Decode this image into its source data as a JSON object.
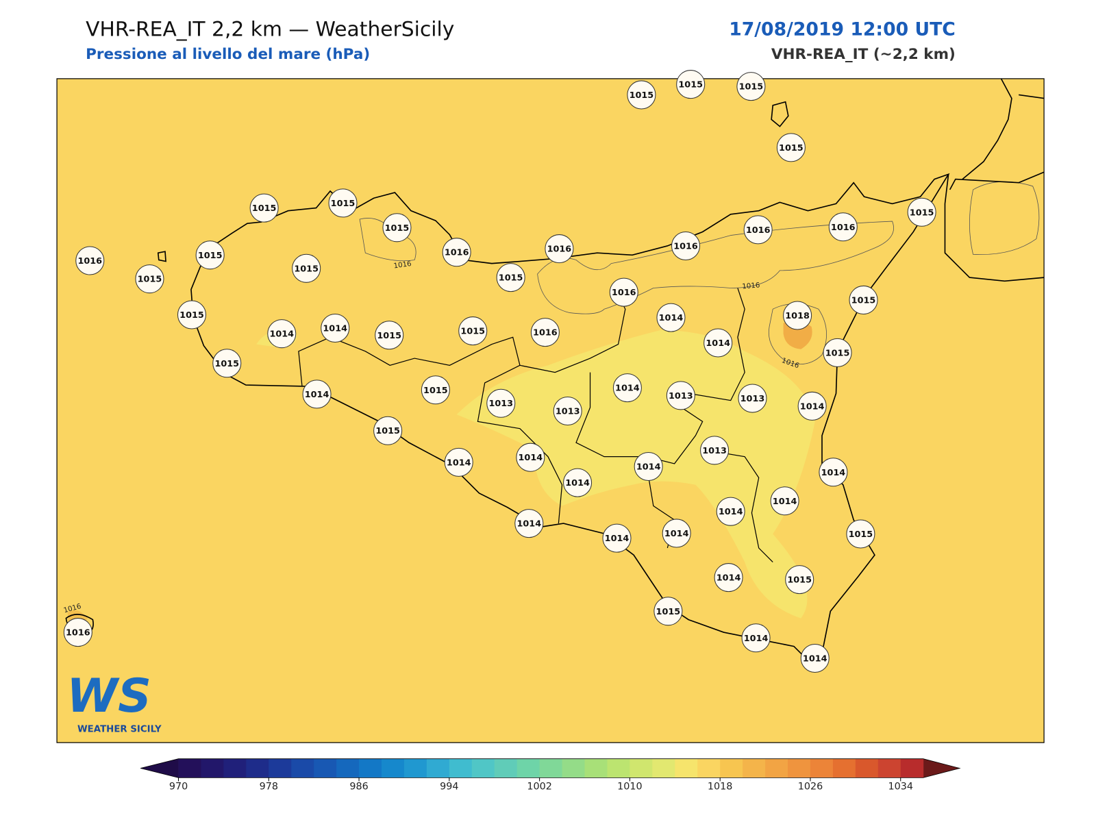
{
  "header": {
    "title": "VHR-REA_IT 2,2 km — WeatherSicily",
    "subtitle": "Pressione al livello del mare (hPa)",
    "date": "17/08/2019 12:00 UTC",
    "model": "VHR-REA_IT (~2,2 km)"
  },
  "logo": {
    "mark": "WS",
    "text": "WEATHER SICILY"
  },
  "stations": [
    1015,
    1015,
    1015,
    1015,
    1015,
    1015,
    1015,
    1016,
    1016,
    1016,
    1016,
    1016,
    1015,
    1016,
    1015,
    1015,
    1015,
    1015,
    1016,
    1014,
    1015,
    1018,
    1015,
    1014,
    1014,
    1015,
    1015,
    1016,
    1014,
    1015,
    1015,
    1014,
    1015,
    1013,
    1013,
    1014,
    1013,
    1013,
    1014,
    1015,
    1014,
    1014,
    1014,
    1014,
    1013,
    1014,
    1014,
    1014,
    1014,
    1014,
    1014,
    1015,
    1014,
    1015,
    1015,
    1014,
    1014,
    1016
  ],
  "contour_labels": [
    1016,
    1016,
    1016,
    1016
  ],
  "colorbar": {
    "clim": [
      970,
      1036
    ],
    "ticks": [
      970,
      978,
      986,
      994,
      1002,
      1010,
      1018,
      1026,
      1034
    ],
    "colors": [
      "#23105a",
      "#22176a",
      "#20207a",
      "#1e2c8a",
      "#1c3a9a",
      "#1a4aa8",
      "#1858b3",
      "#1568bd",
      "#1378c6",
      "#1688cc",
      "#2098d0",
      "#30aad2",
      "#40bccf",
      "#50c6c6",
      "#60ccb8",
      "#6ed4a8",
      "#80d898",
      "#94dc88",
      "#a8e078",
      "#bce470",
      "#d0e66e",
      "#e2e870",
      "#f6e46c",
      "#fad561",
      "#f7c550",
      "#f4b44a",
      "#f2a444",
      "#ef943e",
      "#ec8438",
      "#e57030",
      "#d9582c",
      "#cc4430",
      "#b82c2c"
    ],
    "extend_colors": [
      "#1f0c48",
      "#6b1a1a"
    ]
  }
}
